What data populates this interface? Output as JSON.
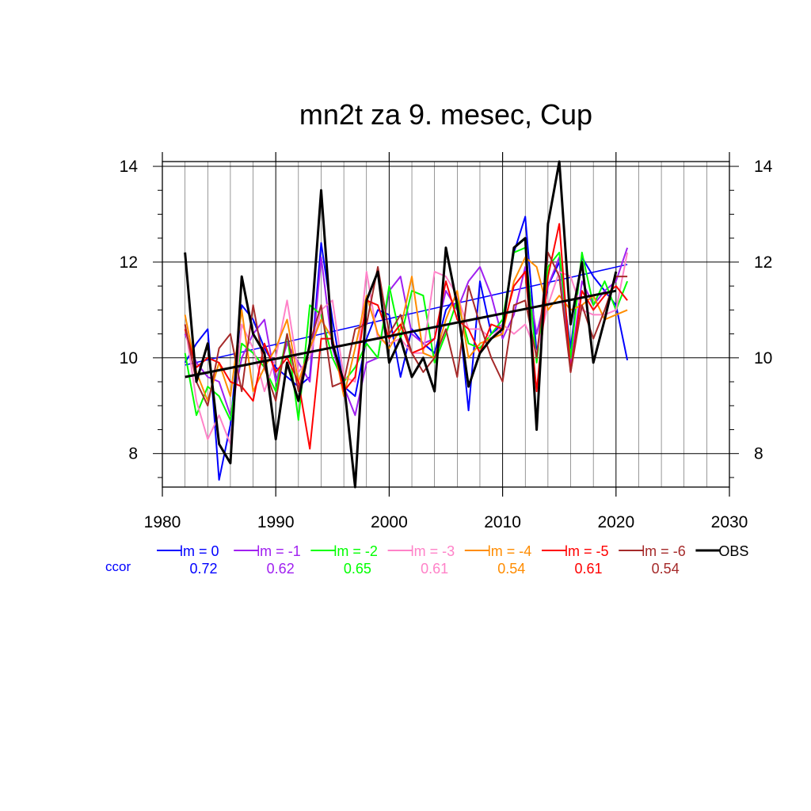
{
  "chart_data": {
    "type": "line",
    "title": "mn2t za 9. mesec, Cup",
    "xlabel": "",
    "ylabel": "",
    "xlim": [
      1980,
      2030
    ],
    "ylim": [
      7.3,
      14.1
    ],
    "x_ticks": [
      1980,
      1990,
      2000,
      2010,
      2020,
      2030
    ],
    "y_ticks": [
      8,
      10,
      12,
      14
    ],
    "grid": true,
    "legend_position": "bottom",
    "ccor_label": "ccor",
    "x": [
      1982,
      1983,
      1984,
      1985,
      1986,
      1987,
      1988,
      1989,
      1990,
      1991,
      1992,
      1993,
      1994,
      1995,
      1996,
      1997,
      1998,
      1999,
      2000,
      2001,
      2002,
      2003,
      2004,
      2005,
      2006,
      2007,
      2008,
      2009,
      2010,
      2011,
      2012,
      2013,
      2014,
      2015,
      2016,
      2017,
      2018,
      2019,
      2020,
      2021
    ],
    "series": [
      {
        "name": "lm = 0",
        "color": "#0000ff",
        "ccor": "0.72",
        "values": [
          9.9,
          10.3,
          10.6,
          7.45,
          8.6,
          11.1,
          10.8,
          10.2,
          9.8,
          9.6,
          9.4,
          9.6,
          12.4,
          10.8,
          9.4,
          9.2,
          10.4,
          11.0,
          10.9,
          9.6,
          10.6,
          10.3,
          10.1,
          11.0,
          11.3,
          8.9,
          11.6,
          10.5,
          10.7,
          12.2,
          12.95,
          10.1,
          11.5,
          12.0,
          10.2,
          12.1,
          11.7,
          11.4,
          11.1,
          9.95
        ],
        "trend": [
          9.85,
          11.95
        ]
      },
      {
        "name": "lm = -1",
        "color": "#a020f0",
        "ccor": "0.62",
        "values": [
          10.5,
          9.9,
          9.6,
          9.5,
          8.8,
          10.0,
          10.5,
          10.8,
          9.5,
          10.3,
          9.9,
          9.5,
          12.1,
          10.2,
          9.4,
          8.8,
          9.9,
          10.0,
          11.4,
          11.7,
          10.5,
          10.3,
          10.4,
          11.4,
          11.0,
          11.6,
          11.9,
          11.3,
          10.4,
          10.9,
          11.9,
          10.5,
          11.5,
          12.1,
          9.8,
          11.6,
          11.1,
          11.4,
          11.6,
          12.3
        ]
      },
      {
        "name": "lm = -2",
        "color": "#00ff00",
        "ccor": "0.65",
        "values": [
          10.1,
          8.8,
          9.4,
          9.2,
          8.7,
          10.3,
          10.1,
          9.8,
          9.3,
          10.5,
          8.7,
          11.1,
          10.9,
          10.0,
          9.5,
          9.8,
          10.3,
          10.0,
          11.5,
          10.4,
          11.4,
          11.3,
          9.9,
          10.5,
          11.2,
          10.3,
          10.2,
          10.5,
          10.8,
          12.2,
          12.3,
          9.9,
          11.9,
          12.2,
          10.0,
          12.2,
          11.1,
          11.6,
          11.0,
          11.6
        ]
      },
      {
        "name": "lm = -3",
        "color": "#ff82c8",
        "ccor": "0.61",
        "values": [
          10.7,
          9.1,
          8.3,
          8.8,
          8.2,
          10.7,
          10.2,
          9.3,
          10.0,
          11.2,
          9.7,
          10.0,
          11.0,
          11.2,
          9.6,
          9.5,
          11.8,
          10.4,
          10.3,
          10.4,
          10.1,
          10.1,
          11.8,
          11.7,
          11.3,
          10.6,
          10.6,
          10.4,
          10.7,
          10.5,
          10.7,
          10.1,
          11.1,
          11.8,
          11.7,
          11.0,
          10.9,
          10.9,
          11.0,
          12.2
        ]
      },
      {
        "name": "lm = -4",
        "color": "#ff8c00",
        "ccor": "0.54",
        "values": [
          10.9,
          9.7,
          9.1,
          9.9,
          9.2,
          11.0,
          9.3,
          9.8,
          10.2,
          10.8,
          9.5,
          10.2,
          10.8,
          10.4,
          9.2,
          10.2,
          11.3,
          10.5,
          10.2,
          10.6,
          11.7,
          10.1,
          10.0,
          10.8,
          11.4,
          10.0,
          10.3,
          10.4,
          10.5,
          11.6,
          12.1,
          11.9,
          11.0,
          11.3,
          11.0,
          11.1,
          11.3,
          10.8,
          10.9,
          11.0
        ]
      },
      {
        "name": "lm = -5",
        "color": "#ff0000",
        "ccor": "0.61",
        "values": [
          10.6,
          9.8,
          10.0,
          9.9,
          9.5,
          9.4,
          9.1,
          10.3,
          9.7,
          10.0,
          9.5,
          8.1,
          10.4,
          10.4,
          9.3,
          9.6,
          11.2,
          11.1,
          10.4,
          10.7,
          10.1,
          10.2,
          10.4,
          11.6,
          10.8,
          10.6,
          10.1,
          10.7,
          10.6,
          11.5,
          11.8,
          9.3,
          11.7,
          12.8,
          9.7,
          11.4,
          11.0,
          11.3,
          11.5,
          11.2
        ]
      },
      {
        "name": "lm = -6",
        "color": "#a52a2a",
        "ccor": "0.54",
        "values": [
          10.7,
          9.5,
          9.0,
          10.2,
          10.5,
          9.3,
          11.1,
          9.8,
          9.1,
          10.5,
          9.3,
          10.3,
          11.1,
          9.4,
          9.5,
          10.6,
          10.7,
          11.9,
          10.5,
          10.9,
          10.1,
          9.7,
          10.0,
          10.6,
          9.6,
          11.5,
          10.7,
          10.0,
          9.5,
          11.1,
          11.2,
          10.0,
          12.2,
          11.7,
          9.7,
          11.1,
          10.4,
          11.0,
          11.7,
          11.7
        ]
      },
      {
        "name": "OBS",
        "color": "#000000",
        "ccor": "",
        "values": [
          12.2,
          9.5,
          10.3,
          8.2,
          7.8,
          11.7,
          10.5,
          10.1,
          8.3,
          9.9,
          9.1,
          10.3,
          13.5,
          10.3,
          9.5,
          7.3,
          11.2,
          11.8,
          9.9,
          10.4,
          9.6,
          10.0,
          9.3,
          12.3,
          11.1,
          9.4,
          10.1,
          10.4,
          10.6,
          12.3,
          12.5,
          8.5,
          12.8,
          14.1,
          10.7,
          12.0,
          9.9,
          10.8,
          11.8,
          null
        ],
        "trend": [
          9.6,
          11.4
        ]
      }
    ]
  }
}
